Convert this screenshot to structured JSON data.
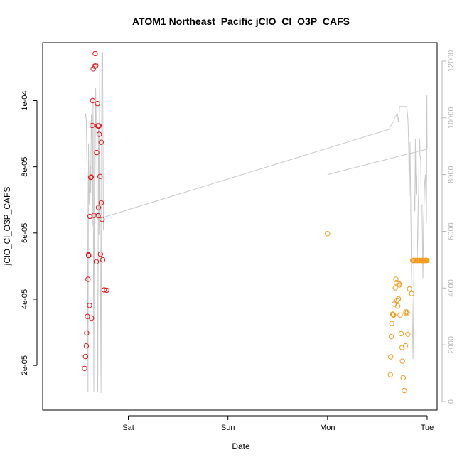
{
  "chart_data": {
    "type": "scatter",
    "title": "ATOM1 Northeast_Pacific jClO_Cl_O3P_CAFS",
    "xlabel": "Date",
    "ylabel": "jClO_Cl_O3P_CAFS",
    "x_units": "days (Sat = 1, Sun = 2, Mon = 3, Tue = 4)",
    "xlim": [
      0.14,
      4.1
    ],
    "ylim": [
      6.5e-06,
      0.0001175
    ],
    "y2lim": [
      -300,
      12650
    ],
    "x_ticks": [
      {
        "at": 1,
        "label": "Sat"
      },
      {
        "at": 2,
        "label": "Sun"
      },
      {
        "at": 3,
        "label": "Mon"
      },
      {
        "at": 4,
        "label": "Tue"
      }
    ],
    "y_ticks": [
      {
        "at": 2e-05,
        "label": "2e-05"
      },
      {
        "at": 4e-05,
        "label": "4e-05"
      },
      {
        "at": 6e-05,
        "label": "6e-05"
      },
      {
        "at": 8e-05,
        "label": "8e-05"
      },
      {
        "at": 0.0001,
        "label": "1e-04"
      }
    ],
    "y2_ticks": [
      {
        "at": 0,
        "label": "0"
      },
      {
        "at": 2000,
        "label": "2000"
      },
      {
        "at": 4000,
        "label": "4000"
      },
      {
        "at": 6000,
        "label": "6000"
      },
      {
        "at": 8000,
        "label": "8000"
      },
      {
        "at": 10000,
        "label": "10000"
      },
      {
        "at": 12000,
        "label": "12000"
      }
    ],
    "colors": {
      "red_points": "#e8141a",
      "orange_points": "#f39c1f",
      "altitude_line": "#c8c8c8"
    },
    "series": [
      {
        "color": "red",
        "x": [
          0.561,
          0.57,
          0.578,
          0.582,
          0.589,
          0.595,
          0.6,
          0.603,
          0.611,
          0.615,
          0.622,
          0.627,
          0.63,
          0.638,
          0.642,
          0.648,
          0.655,
          0.662,
          0.667,
          0.674,
          0.679,
          0.682,
          0.69,
          0.693,
          0.697,
          0.7,
          0.701,
          0.706,
          0.708,
          0.716,
          0.72,
          0.727,
          0.728,
          0.737,
          0.743,
          0.758,
          0.783
        ],
        "y": [
          1.91e-05,
          2.27e-05,
          2.59e-05,
          2.98e-05,
          3.48e-05,
          4.6e-05,
          5.34e-05,
          5.32e-05,
          3.81e-05,
          6.5e-05,
          7.68e-05,
          7.69e-05,
          3.43e-05,
          9.25e-05,
          0.0001,
          0.0001096,
          6.53e-05,
          0.0001104,
          0.0001142,
          0.0001106,
          5.13e-05,
          8.43e-05,
          9.91e-05,
          9.24e-05,
          6.52e-05,
          6.77e-05,
          9.23e-05,
          9.24e-05,
          8.98e-05,
          7.71e-05,
          5.36e-05,
          8.74e-05,
          6.91e-05,
          6.41e-05,
          5.19e-05,
          4.28e-05,
          4.27e-05
        ]
      },
      {
        "color": "orange",
        "x": [
          3.0,
          3.631,
          3.634,
          3.64,
          3.645,
          3.653,
          3.659,
          3.663,
          3.668,
          3.68,
          3.686,
          3.692,
          3.699,
          3.705,
          3.711,
          3.716,
          3.722,
          3.728,
          3.74,
          3.748,
          3.752,
          3.76,
          3.771,
          3.783,
          3.785,
          3.792,
          3.8,
          3.806,
          3.823,
          3.845,
          3.855,
          3.86,
          3.865,
          3.873,
          3.885,
          3.897,
          3.903,
          3.906,
          3.916,
          3.922,
          3.938,
          3.944,
          3.95,
          3.956,
          3.962,
          3.969,
          3.975,
          3.982,
          3.988,
          3.993,
          3.999
        ],
        "y": [
          5.98e-05,
          1.72e-05,
          2.26e-05,
          2.87e-05,
          3.27e-05,
          3.55e-05,
          3.53e-05,
          3.52e-05,
          3.85e-05,
          4.34e-05,
          4.6e-05,
          4.5e-05,
          3.97e-05,
          3.79e-05,
          4.01e-05,
          4.47e-05,
          4.43e-05,
          3.52e-05,
          2.96e-05,
          2.54e-05,
          2.13e-05,
          1.63e-05,
          1.24e-05,
          2.59e-05,
          3.59e-05,
          3.62e-05,
          3.59e-05,
          2.94e-05,
          4.31e-05,
          4.17e-05,
          5.17e-05,
          5.17e-05,
          5.17e-05,
          5.17e-05,
          5.17e-05,
          5.17e-05,
          5.17e-05,
          5.17e-05,
          5.17e-05,
          5.17e-05,
          5.17e-05,
          5.17e-05,
          5.17e-05,
          5.17e-05,
          5.17e-05,
          5.17e-05,
          5.17e-05,
          5.17e-05,
          5.17e-05,
          5.17e-05,
          5.17e-05
        ]
      },
      {
        "type": "line",
        "axis": "right",
        "color": "grey",
        "x": [
          0.56,
          0.572,
          0.578,
          0.588,
          0.595,
          0.6,
          0.608,
          0.611,
          0.617,
          0.622,
          0.629,
          0.635,
          0.64,
          0.646,
          0.654,
          0.66,
          0.666,
          0.672,
          0.678,
          0.684,
          0.689,
          0.694,
          0.7,
          0.706,
          0.712,
          0.718,
          0.726,
          0.734,
          0.742,
          0.75,
          0.758,
          3.62,
          3.628,
          3.641,
          3.648,
          3.655,
          3.665,
          3.672,
          3.685,
          3.698,
          3.705,
          3.711,
          3.716,
          3.722,
          3.727,
          3.733,
          3.738,
          3.744,
          3.748,
          3.756,
          3.763,
          3.768,
          3.773,
          3.778,
          3.783,
          3.79,
          3.797,
          3.803,
          3.808,
          3.815,
          3.82,
          3.828,
          3.842,
          3.858,
          3.866,
          3.869,
          3.877,
          3.882,
          3.889,
          3.895,
          3.9,
          3.905,
          3.91,
          3.915,
          3.92,
          3.925,
          3.928,
          3.931,
          3.936,
          3.941,
          3.949,
          3.957,
          3.964,
          3.974,
          3.982,
          3.993,
          3.997,
          4.0,
          3.0
        ],
        "y": [
          10000,
          10150,
          9900,
          7800,
          350,
          9100,
          6950,
          7000,
          8300,
          7350,
          10100,
          9200,
          6200,
          10700,
          350,
          9650,
          8000,
          11050,
          9700,
          9700,
          1500,
          350,
          9650,
          5900,
          11700,
          5700,
          300,
          12300,
          12300,
          6050,
          6500,
          9600,
          9700,
          9750,
          9800,
          9850,
          9850,
          10000,
          10050,
          10150,
          10100,
          9850,
          9950,
          10350,
          10400,
          10400,
          10400,
          10400,
          10400,
          10400,
          10400,
          10400,
          10400,
          10400,
          10400,
          10400,
          10350,
          10100,
          9850,
          8850,
          7250,
          9150,
          4850,
          1500,
          3850,
          7300,
          6700,
          9250,
          7300,
          8000,
          5000,
          5600,
          6900,
          7350,
          9300,
          9200,
          8650,
          8650,
          8450,
          6900,
          6900,
          4350,
          6250,
          7600,
          8000,
          6300,
          10800,
          8900,
          8000
        ]
      }
    ]
  }
}
